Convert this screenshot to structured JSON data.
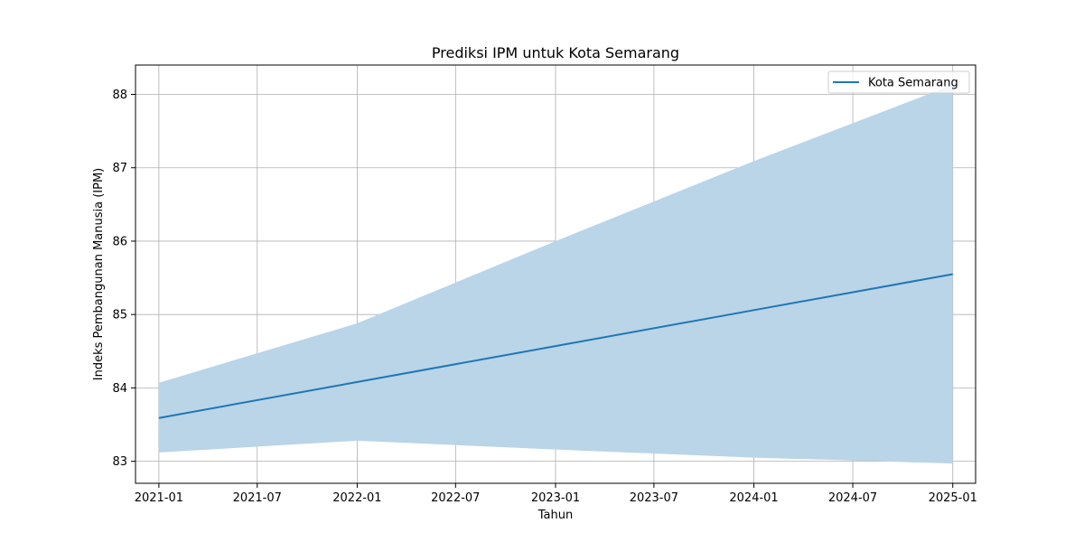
{
  "chart_data": {
    "type": "line",
    "title": "Prediksi IPM untuk Kota Semarang",
    "xlabel": "Tahun",
    "ylabel": "Indeks Pembangunan Manusia (IPM)",
    "x_ticks": [
      "2021-01",
      "2021-07",
      "2022-01",
      "2022-07",
      "2023-01",
      "2023-07",
      "2024-01",
      "2024-07",
      "2025-01"
    ],
    "y_ticks": [
      83,
      84,
      85,
      86,
      87,
      88
    ],
    "xlim": [
      "2020-11-19",
      "2025-02-12"
    ],
    "ylim": [
      82.7,
      88.4
    ],
    "grid": true,
    "legend": "top-right",
    "series": [
      {
        "name": "Kota Semarang",
        "color": "#1f77b4",
        "x": [
          "2021-01-01",
          "2022-01-01",
          "2023-01-01",
          "2024-01-01",
          "2025-01-01"
        ],
        "y": [
          83.59,
          84.08,
          84.57,
          85.06,
          85.55
        ],
        "lower": [
          83.12,
          83.28,
          83.16,
          83.05,
          82.97
        ],
        "upper": [
          84.07,
          84.88,
          86.0,
          87.09,
          88.13
        ],
        "band_color": "#bad4e8"
      }
    ]
  }
}
